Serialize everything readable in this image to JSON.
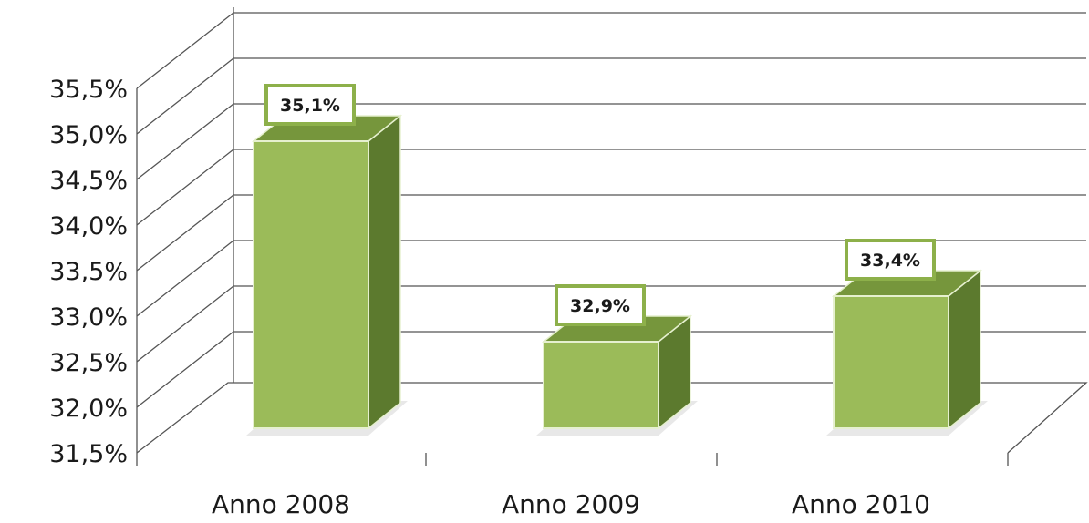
{
  "chart_data": {
    "type": "bar",
    "style": "3d-column",
    "categories": [
      "Anno 2008",
      "Anno 2009",
      "Anno 2010"
    ],
    "values": [
      35.1,
      32.9,
      33.4
    ],
    "data_labels": [
      "35,1%",
      "32,9%",
      "33,4%"
    ],
    "ylim": [
      31.5,
      35.5
    ],
    "yticks": [
      31.5,
      32.0,
      32.5,
      33.0,
      33.5,
      34.0,
      34.5,
      35.0,
      35.5
    ],
    "ytick_labels": [
      "31,5%",
      "32,0%",
      "32,5%",
      "33,0%",
      "33,5%",
      "34,0%",
      "34,5%",
      "35,0%",
      "35,5%"
    ],
    "grid": true,
    "legend": "none",
    "colors": {
      "bar_front": "#9bbb59",
      "bar_side": "#5c7a2e",
      "bar_top": "#76963c",
      "bar_edge": "#e6f0cf",
      "label_border": "#8db04a",
      "grid": "#555555"
    }
  }
}
